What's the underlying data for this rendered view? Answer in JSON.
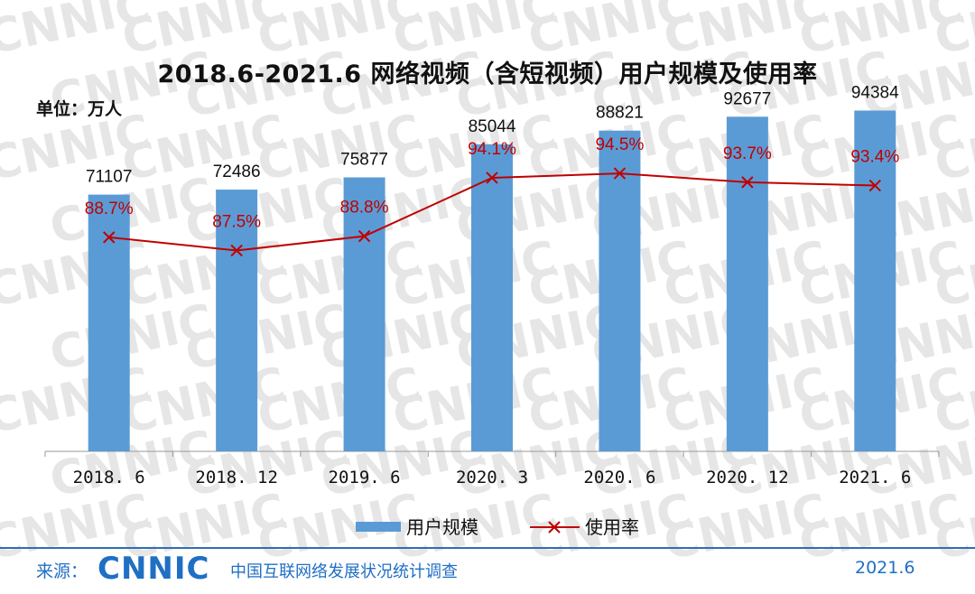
{
  "header": {
    "title": "2018.6-2021.6 网络视频（含短视频）用户规模及使用率",
    "unit": "单位：万人"
  },
  "footer": {
    "source_label": "来源：",
    "logo_text": "CNNIC",
    "org": "中国互联网络发展状况统计调查",
    "date": "2021.6"
  },
  "watermark": {
    "text": "CNNIC",
    "color": "#e6e6e6"
  },
  "colors": {
    "bar": "#5b9bd5",
    "line": "#c00000",
    "rate_label": "#c00000",
    "axis": "#999999"
  },
  "chart_data": {
    "type": "bar",
    "title": "2018.6-2021.6 网络视频（含短视频）用户规模及使用率",
    "categories": [
      "2018. 6",
      "2018. 12",
      "2019. 6",
      "2020. 3",
      "2020. 6",
      "2020. 12",
      "2021. 6"
    ],
    "series": [
      {
        "name": "用户规模",
        "type": "bar",
        "values": [
          71107,
          72486,
          75877,
          85044,
          88821,
          92677,
          94384
        ]
      },
      {
        "name": "使用率",
        "type": "line",
        "values": [
          88.7,
          87.5,
          88.8,
          94.1,
          94.5,
          93.7,
          93.4
        ],
        "labels": [
          "88.7%",
          "87.5%",
          "88.8%",
          "94.1%",
          "94.5%",
          "93.7%",
          "93.4%"
        ]
      }
    ],
    "ylim": [
      0,
      100000
    ],
    "rate_ylim": [
      0,
      100
    ],
    "legend_position": "bottom",
    "grid": false
  }
}
